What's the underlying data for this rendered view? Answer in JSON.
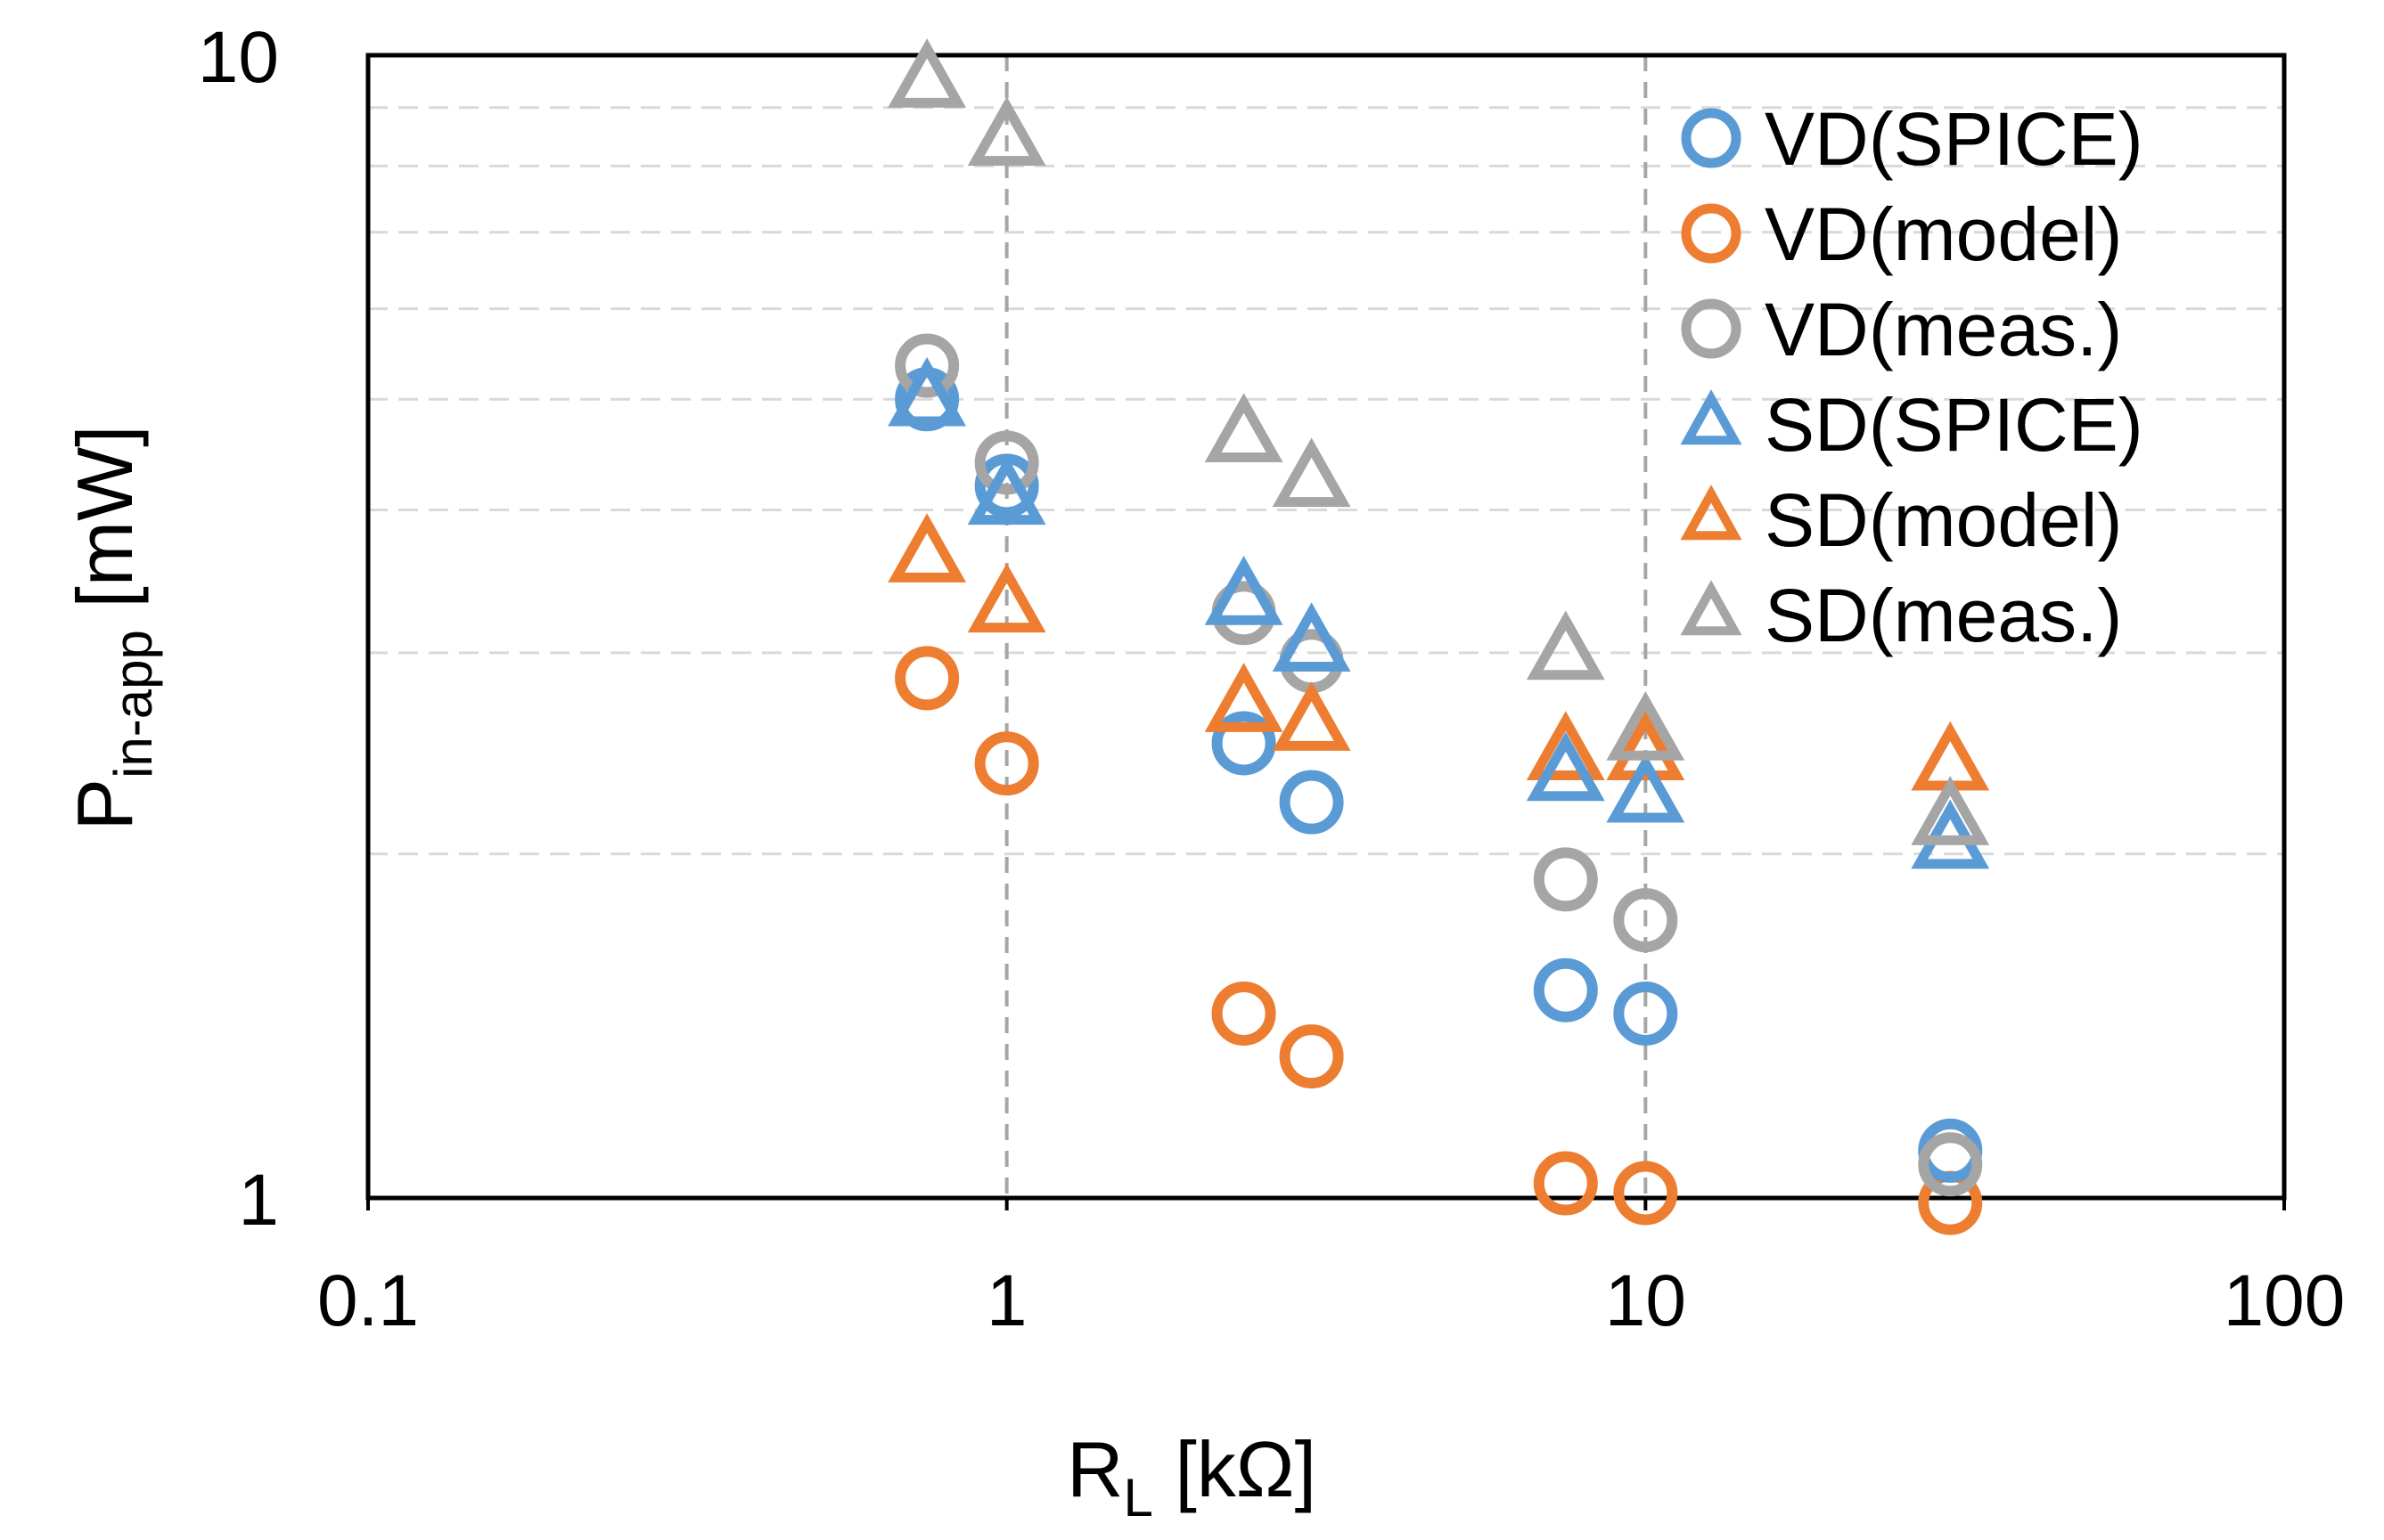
{
  "chart_data": {
    "type": "scatter",
    "x_scale": "log",
    "y_scale": "log",
    "xlim": [
      0.1,
      100
    ],
    "ylim": [
      1,
      10
    ],
    "x_ticks": [
      "0.1",
      "1",
      "10",
      "100"
    ],
    "y_ticks": [
      "1",
      "10"
    ],
    "x_tick_values": [
      0.1,
      1,
      10,
      100
    ],
    "y_tick_values": [
      1,
      10
    ],
    "xlabel": {
      "main": "R",
      "sub": "L",
      "rest": " [kΩ]"
    },
    "ylabel": {
      "main": "P",
      "sub": "in-app",
      "rest": " [mW]"
    },
    "minor_gridlines_y": [
      2,
      3,
      4,
      5,
      6,
      7,
      8,
      9
    ],
    "major_gridlines_x": [
      1,
      10
    ],
    "legend_position": "top-right",
    "colors": {
      "blue": "#5b9bd5",
      "orange": "#ed7d31",
      "gray": "#a5a5a5",
      "grid": "#d9d9d9",
      "grid_major": "#a6a6a6"
    },
    "series": [
      {
        "name": "VD(SPICE)",
        "marker": "circle",
        "color": "#5b9bd5",
        "points": [
          [
            0.75,
            5.0
          ],
          [
            1.0,
            4.2
          ],
          [
            2.35,
            2.5
          ],
          [
            3.0,
            2.22
          ],
          [
            7.5,
            1.52
          ],
          [
            10.0,
            1.45
          ],
          [
            30.0,
            1.1
          ]
        ]
      },
      {
        "name": "VD(model)",
        "marker": "circle",
        "color": "#ed7d31",
        "points": [
          [
            0.75,
            2.85
          ],
          [
            1.0,
            2.4
          ],
          [
            2.35,
            1.45
          ],
          [
            3.0,
            1.33
          ],
          [
            7.5,
            1.03
          ],
          [
            10.0,
            1.01
          ],
          [
            30.0,
            0.99
          ]
        ]
      },
      {
        "name": "VD(meas.)",
        "marker": "circle",
        "color": "#a5a5a5",
        "points": [
          [
            0.75,
            5.35
          ],
          [
            1.0,
            4.4
          ],
          [
            2.35,
            3.25
          ],
          [
            3.0,
            2.95
          ],
          [
            7.5,
            1.9
          ],
          [
            10.0,
            1.75
          ],
          [
            30.0,
            1.07
          ]
        ]
      },
      {
        "name": "SD(SPICE)",
        "marker": "triangle",
        "color": "#5b9bd5",
        "points": [
          [
            0.75,
            5.0
          ],
          [
            1.0,
            4.1
          ],
          [
            2.35,
            3.35
          ],
          [
            3.0,
            3.05
          ],
          [
            7.5,
            2.35
          ],
          [
            10.0,
            2.25
          ],
          [
            30.0,
            2.05
          ]
        ]
      },
      {
        "name": "SD(model)",
        "marker": "triangle",
        "color": "#ed7d31",
        "points": [
          [
            0.75,
            3.65
          ],
          [
            1.0,
            3.3
          ],
          [
            2.35,
            2.7
          ],
          [
            3.0,
            2.6
          ],
          [
            7.5,
            2.45
          ],
          [
            10.0,
            2.45
          ],
          [
            30.0,
            2.4
          ]
        ]
      },
      {
        "name": "SD(meas.)",
        "marker": "triangle",
        "color": "#a5a5a5",
        "points": [
          [
            0.75,
            9.5
          ],
          [
            1.0,
            8.45
          ],
          [
            2.35,
            4.65
          ],
          [
            3.0,
            4.25
          ],
          [
            7.5,
            3.0
          ],
          [
            10.0,
            2.55
          ],
          [
            30.0,
            2.15
          ]
        ]
      }
    ]
  }
}
